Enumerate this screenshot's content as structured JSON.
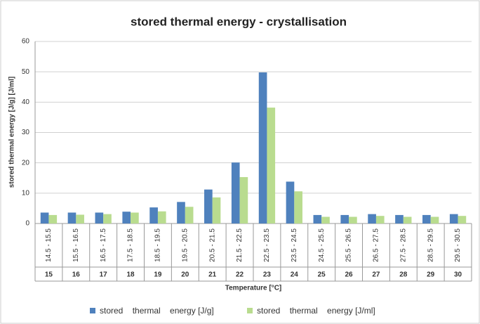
{
  "chart_data": {
    "type": "bar",
    "title": "stored thermal energy - crystallisation",
    "x_label": "Temperature [°C]",
    "y_label": "stored thermal energy [J/g] [J/ml]",
    "categories": [
      "14.5 - 15.5",
      "15.5 - 16.5",
      "16.5 - 17.5",
      "17.5 - 18.5",
      "18.5 - 19.5",
      "19.5 - 20.5",
      "20.5 - 21.5",
      "21.5 - 22.5",
      "22.5 - 23.5",
      "23.5 - 24.5",
      "24.5 - 25.5",
      "25.5 - 26.5",
      "26.5 - 27.5",
      "27.5 - 28.5",
      "28.5 - 29.5",
      "29.5 - 30.5"
    ],
    "category_groups": [
      15,
      16,
      17,
      18,
      19,
      20,
      21,
      22,
      23,
      24,
      25,
      26,
      27,
      28,
      29,
      30
    ],
    "series": [
      {
        "name": "stored    thermal    energy [J/g]",
        "color": "#4f81bd",
        "values": [
          3.6,
          3.6,
          3.6,
          3.9,
          5.3,
          7.1,
          11.2,
          20.1,
          49.8,
          13.8,
          2.8,
          2.8,
          3.1,
          2.8,
          2.8,
          3.1
        ]
      },
      {
        "name": "stored    thermal    energy [J/ml]",
        "color": "#b9dc8f",
        "values": [
          2.8,
          2.9,
          3.1,
          3.6,
          4.0,
          5.5,
          8.6,
          15.3,
          38.2,
          10.6,
          2.2,
          2.2,
          2.5,
          2.2,
          2.2,
          2.5
        ]
      }
    ],
    "ylim": [
      0,
      60
    ],
    "yticks": [
      0,
      10,
      20,
      30,
      40,
      50,
      60
    ],
    "grid": true,
    "legend": "bottom"
  }
}
